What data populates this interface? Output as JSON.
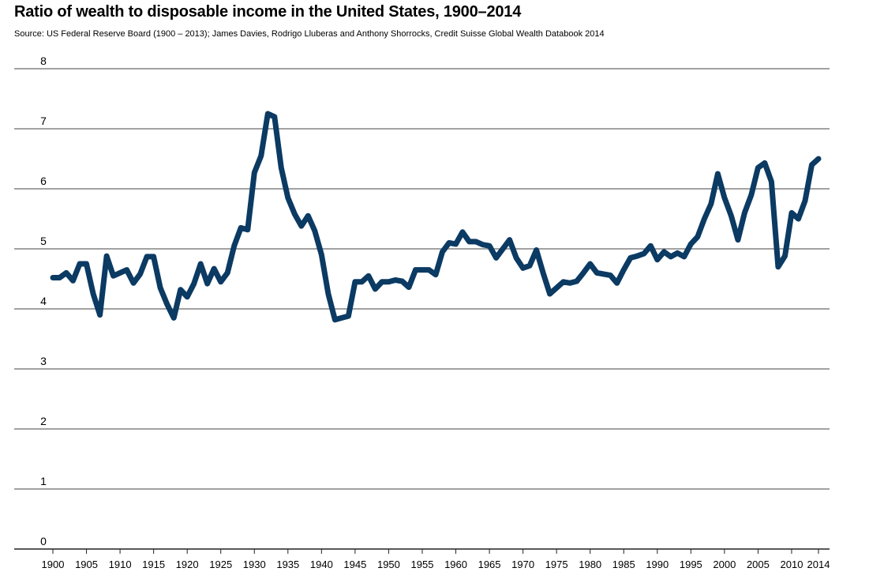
{
  "chart_data": {
    "type": "line",
    "title": "Ratio of wealth to disposable income in the United States, 1900–2014",
    "subtitle": "Source: US Federal Reserve Board (1900 – 2013); James Davies, Rodrigo Lluberas and Anthony Shorrocks, Credit Suisse Global Wealth Databook 2014",
    "xlabel": "",
    "ylabel": "",
    "xlim": [
      1900,
      2014
    ],
    "ylim": [
      0,
      8
    ],
    "grid": "horizontal",
    "line_color": "#0b3a63",
    "y_ticks": [
      "0",
      "1",
      "2",
      "3",
      "4",
      "5",
      "6",
      "7",
      "8"
    ],
    "x_ticks": [
      "1900",
      "1905",
      "1910",
      "1915",
      "1920",
      "1925",
      "1930",
      "1935",
      "1940",
      "1945",
      "1950",
      "1955",
      "1960",
      "1965",
      "1970",
      "1975",
      "1980",
      "1985",
      "1990",
      "1995",
      "2000",
      "2005",
      "2010",
      "2014"
    ],
    "series": [
      {
        "x": [
          1900,
          1901,
          1902,
          1903,
          1904,
          1905,
          1906,
          1907,
          1908,
          1909,
          1910,
          1911,
          1912,
          1913,
          1914,
          1915,
          1916,
          1917,
          1918,
          1919,
          1920,
          1921,
          1922,
          1923,
          1924,
          1925,
          1926,
          1927,
          1928,
          1929,
          1930,
          1931,
          1932,
          1933,
          1934,
          1935,
          1936,
          1937,
          1938,
          1939,
          1940,
          1941,
          1942,
          1943,
          1944,
          1945,
          1946,
          1947,
          1948,
          1949,
          1950,
          1951,
          1952,
          1953,
          1954,
          1955,
          1956,
          1957,
          1958,
          1959,
          1960,
          1961,
          1962,
          1963,
          1964,
          1965,
          1966,
          1967,
          1968,
          1969,
          1970,
          1971,
          1972,
          1973,
          1974,
          1975,
          1976,
          1977,
          1978,
          1979,
          1980,
          1981,
          1982,
          1983,
          1984,
          1985,
          1986,
          1987,
          1988,
          1989,
          1990,
          1991,
          1992,
          1993,
          1994,
          1995,
          1996,
          1997,
          1998,
          1999,
          2000,
          2001,
          2002,
          2003,
          2004,
          2005,
          2006,
          2007,
          2008,
          2009,
          2010,
          2011,
          2012,
          2013,
          2014
        ],
        "y": [
          4.52,
          4.52,
          4.6,
          4.47,
          4.75,
          4.75,
          4.25,
          3.9,
          4.88,
          4.55,
          4.6,
          4.65,
          4.43,
          4.58,
          4.87,
          4.87,
          4.35,
          4.08,
          3.85,
          4.32,
          4.2,
          4.42,
          4.75,
          4.42,
          4.67,
          4.45,
          4.6,
          5.05,
          5.35,
          5.32,
          6.27,
          6.55,
          7.25,
          7.2,
          6.35,
          5.85,
          5.58,
          5.38,
          5.55,
          5.3,
          4.9,
          4.25,
          3.82,
          3.85,
          3.88,
          4.45,
          4.45,
          4.55,
          4.33,
          4.45,
          4.45,
          4.48,
          4.46,
          4.36,
          4.65,
          4.65,
          4.65,
          4.57,
          4.95,
          5.1,
          5.08,
          5.28,
          5.12,
          5.12,
          5.07,
          5.05,
          4.85,
          5.0,
          5.15,
          4.85,
          4.68,
          4.72,
          4.98,
          4.6,
          4.25,
          4.35,
          4.45,
          4.43,
          4.46,
          4.6,
          4.75,
          4.6,
          4.58,
          4.56,
          4.43,
          4.65,
          4.85,
          4.88,
          4.92,
          5.05,
          4.82,
          4.95,
          4.87,
          4.93,
          4.87,
          5.08,
          5.2,
          5.5,
          5.75,
          6.25,
          5.85,
          5.55,
          5.15,
          5.6,
          5.9,
          6.35,
          6.43,
          6.12,
          4.7,
          4.88,
          5.6,
          5.5,
          5.8,
          6.4,
          6.5
        ]
      }
    ]
  }
}
